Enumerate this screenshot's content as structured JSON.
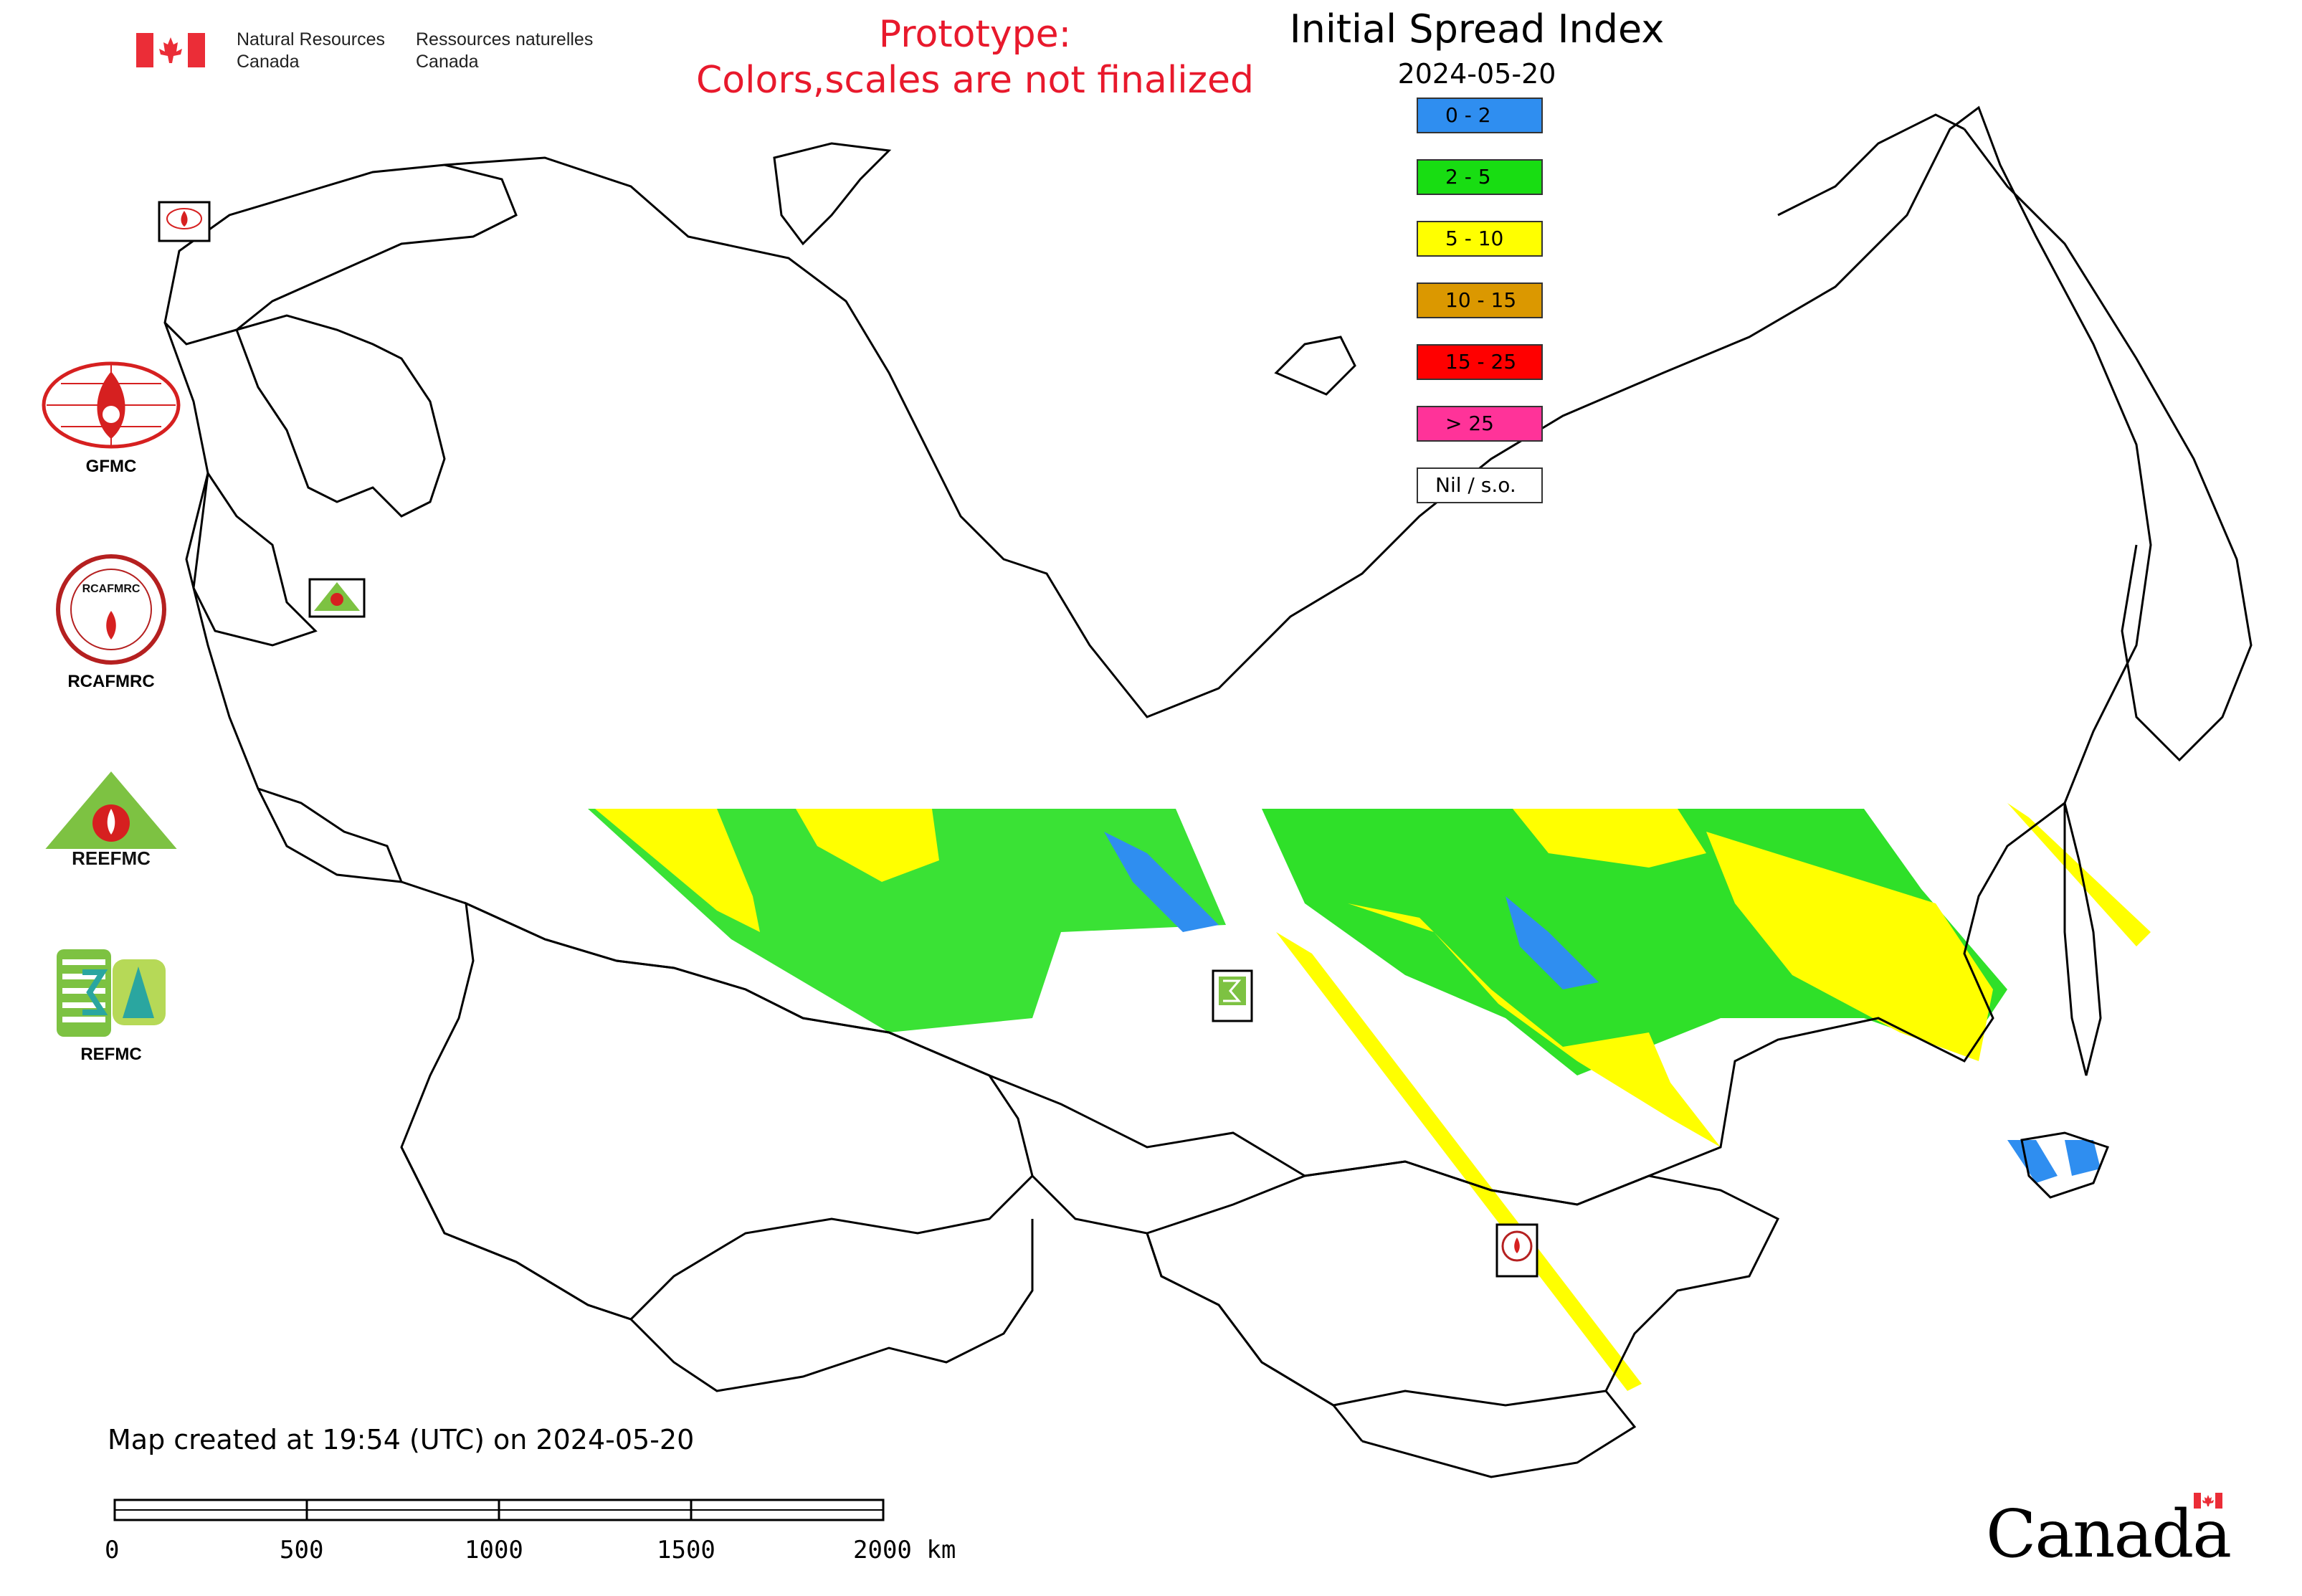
{
  "header": {
    "dept_en_line1": "Natural Resources",
    "dept_en_line2": "Canada",
    "dept_fr_line1": "Ressources naturelles",
    "dept_fr_line2": "Canada"
  },
  "prototype_notice": {
    "line1": "Prototype:",
    "line2": "Colors,scales are not finalized"
  },
  "map": {
    "title": "Initial Spread Index",
    "date": "2024-05-20"
  },
  "legend": [
    {
      "label": "0 - 2",
      "color": "#2f8ef0"
    },
    {
      "label": "2 - 5",
      "color": "#18dd12"
    },
    {
      "label": "5 - 10",
      "color": "#ffff00"
    },
    {
      "label": "10 - 15",
      "color": "#db9800"
    },
    {
      "label": "15 - 25",
      "color": "#ff0000"
    },
    {
      "label": "> 25",
      "color": "#ff3399"
    },
    {
      "label": "Nil / s.o.",
      "color": "#ffffff"
    }
  ],
  "partner_logos": [
    {
      "label": "GFMC",
      "icon": "gfmc-logo-icon"
    },
    {
      "label": "RCAFMRC",
      "icon": "rcafmrc-logo-icon"
    },
    {
      "label": "REEFMC",
      "icon": "reefmc-logo-icon"
    },
    {
      "label": "REFMC",
      "icon": "refmc-logo-icon"
    }
  ],
  "map_markers": [
    {
      "label": "GFMC",
      "icon": "gfmc-marker-icon"
    },
    {
      "label": "REEFMC",
      "icon": "reefmc-marker-icon"
    },
    {
      "label": "REFMC",
      "icon": "refmc-marker-icon"
    },
    {
      "label": "RCAFMRC",
      "icon": "rcafmrc-marker-icon"
    }
  ],
  "footer": {
    "map_created": "Map created at 19:54 (UTC) on 2024-05-20",
    "scale_labels": [
      "0",
      "500",
      "1000",
      "1500",
      "2000 km"
    ],
    "wordmark": "Canada"
  },
  "colors": {
    "prototype_text": "#e8192c",
    "country_outline": "#000000",
    "canada_red": "#eb2d37"
  }
}
